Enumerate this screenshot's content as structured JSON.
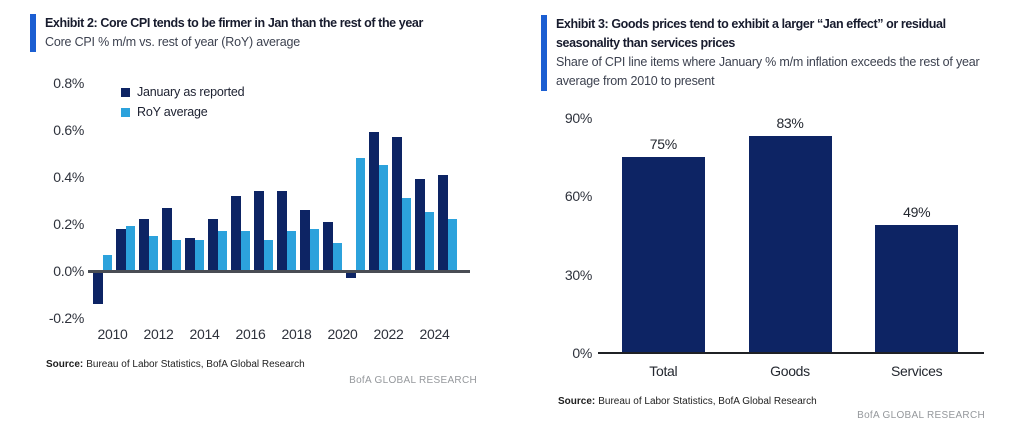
{
  "colors": {
    "navy": "#0d2464",
    "light_blue": "#2ca2dc",
    "accent": "#1b5ed2",
    "axis_line_left": "#494d54",
    "axis_line_right": "#1f2125",
    "brand_text": "#95989c"
  },
  "exhibit2": {
    "title": "Exhibit 2: Core CPI tends to be firmer in Jan than the rest of the year",
    "subtitle": "Core CPI % m/m vs. rest of year (RoY) average",
    "source_label": "Source:",
    "source_text": "Bureau of Labor Statistics, BofA Global Research",
    "brand": "BofA GLOBAL RESEARCH"
  },
  "exhibit3": {
    "title": "Exhibit 3: Goods prices tend to exhibit a larger “Jan effect” or residual seasonality than services prices",
    "subtitle": "Share of CPI line items where January % m/m inflation exceeds the rest of year average from 2010 to present",
    "source_label": "Source:",
    "source_text": "Bureau of Labor Statistics, BofA Global Research",
    "brand": "BofA GLOBAL RESEARCH"
  },
  "chart_data": [
    {
      "id": "exhibit2-core-cpi",
      "type": "bar",
      "title": "Core CPI % m/m vs. rest of year (RoY) average",
      "categories": [
        "2010",
        "2011",
        "2012",
        "2013",
        "2014",
        "2015",
        "2016",
        "2017",
        "2018",
        "2019",
        "2020",
        "2021",
        "2022",
        "2023",
        "2024",
        "2025"
      ],
      "series": [
        {
          "name": "January as reported",
          "color": "#0d2464",
          "values": [
            -0.14,
            0.18,
            0.22,
            0.27,
            0.14,
            0.22,
            0.32,
            0.34,
            0.34,
            0.26,
            0.21,
            -0.03,
            0.59,
            0.57,
            0.39,
            0.41
          ]
        },
        {
          "name": "RoY average",
          "color": "#2ca2dc",
          "values": [
            0.07,
            0.19,
            0.15,
            0.13,
            0.13,
            0.17,
            0.17,
            0.13,
            0.17,
            0.18,
            0.12,
            0.48,
            0.45,
            0.31,
            0.25,
            0.22
          ]
        }
      ],
      "ylim": [
        -0.2,
        0.8
      ],
      "yticks": [
        {
          "value": 0.8,
          "label": "0.8%"
        },
        {
          "value": 0.6,
          "label": "0.6%"
        },
        {
          "value": 0.4,
          "label": "0.4%"
        },
        {
          "value": 0.2,
          "label": "0.2%"
        },
        {
          "value": 0.0,
          "label": "0.0%"
        },
        {
          "value": -0.2,
          "label": "-0.2%"
        }
      ],
      "xticks": [
        {
          "index": 0,
          "label": "2010"
        },
        {
          "index": 2,
          "label": "2012"
        },
        {
          "index": 4,
          "label": "2014"
        },
        {
          "index": 6,
          "label": "2016"
        },
        {
          "index": 8,
          "label": "2018"
        },
        {
          "index": 10,
          "label": "2020"
        },
        {
          "index": 12,
          "label": "2022"
        },
        {
          "index": 14,
          "label": "2024"
        }
      ],
      "legend_position": "top-left-inside",
      "grid": false
    },
    {
      "id": "exhibit3-jan-effect-share",
      "type": "bar",
      "title": "Share of CPI line items where January % m/m inflation exceeds the rest of year average from 2010 to present",
      "categories": [
        "Total",
        "Goods",
        "Services"
      ],
      "values": [
        75,
        83,
        49
      ],
      "data_labels": [
        "75%",
        "83%",
        "49%"
      ],
      "bar_color": "#0d2464",
      "ylim": [
        0,
        90
      ],
      "yticks": [
        {
          "value": 90,
          "label": "90%"
        },
        {
          "value": 60,
          "label": "60%"
        },
        {
          "value": 30,
          "label": "30%"
        },
        {
          "value": 0,
          "label": "0%"
        }
      ],
      "grid": false
    }
  ]
}
